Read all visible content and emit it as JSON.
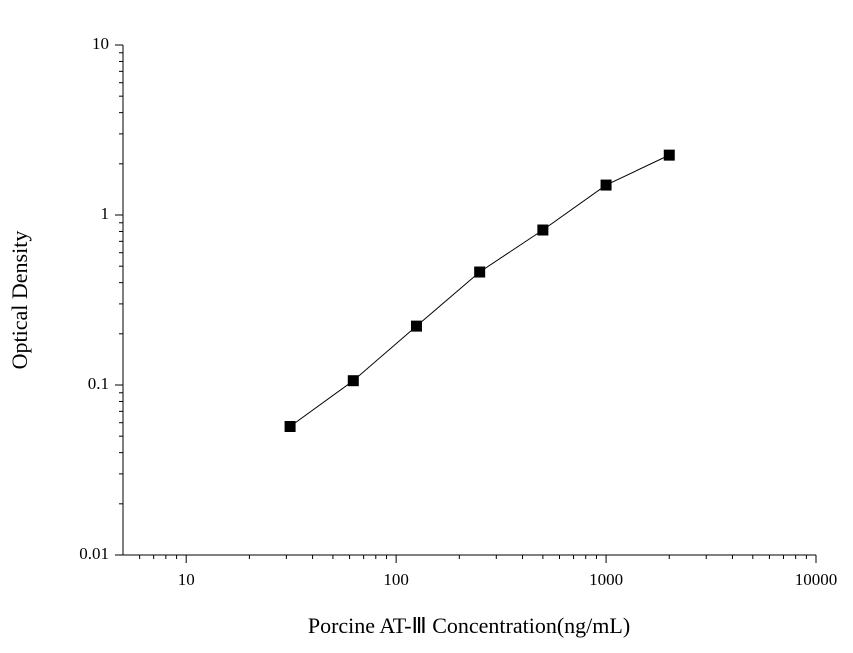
{
  "chart_data": {
    "type": "line",
    "xlabel": "Porcine AT-Ⅲ Concentration(ng/mL)",
    "ylabel": "Optical Density",
    "x": [
      31.25,
      62.5,
      125,
      250,
      500,
      1000,
      2000
    ],
    "series": [
      {
        "color": "#000000",
        "values": [
          0.057,
          0.106,
          0.222,
          0.462,
          0.816,
          1.5,
          2.25
        ]
      }
    ],
    "xlim": [
      5,
      10000
    ],
    "xticks": [
      10,
      100,
      1000,
      10000
    ],
    "ylim": [
      0.01,
      10
    ],
    "yticks": [
      0.01,
      0.1,
      1,
      10
    ],
    "xscale": "log",
    "yscale": "log",
    "grid": false
  }
}
